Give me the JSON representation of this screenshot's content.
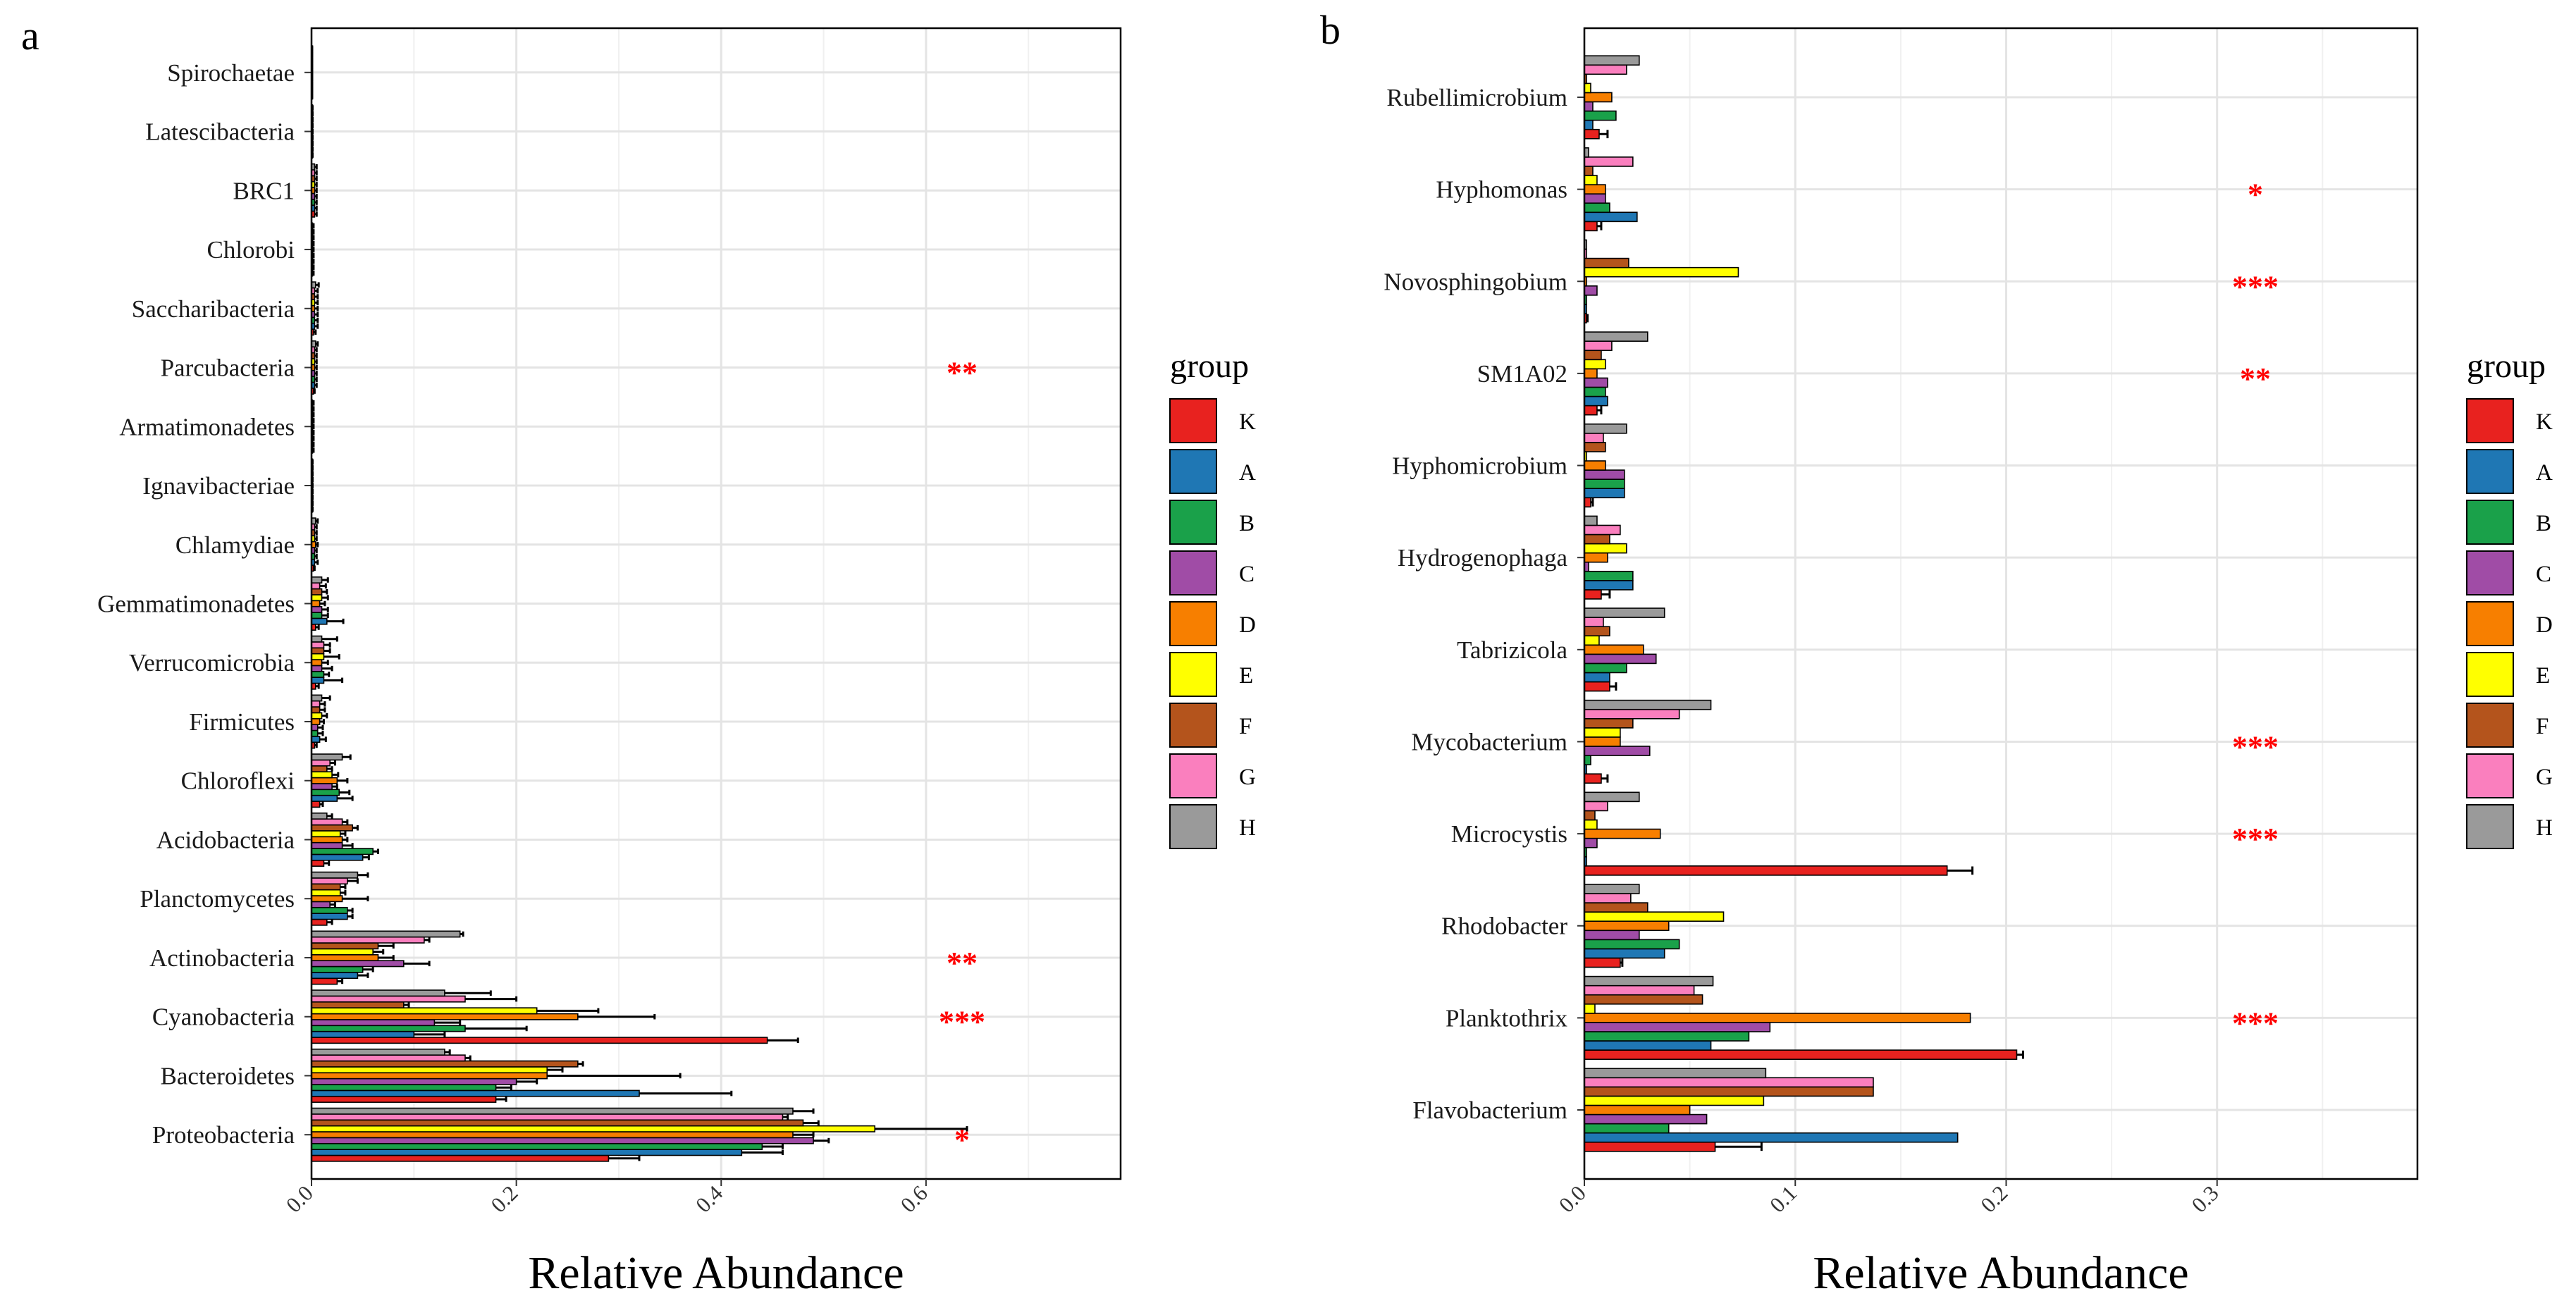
{
  "groups": [
    "K",
    "A",
    "B",
    "C",
    "D",
    "E",
    "F",
    "G",
    "H"
  ],
  "colors": [
    "#e8221f",
    "#1f77b4",
    "#1aa14a",
    "#a04ca6",
    "#f77f00",
    "#ffff00",
    "#b4541c",
    "#fa7fbe",
    "#9a9a9a"
  ],
  "legend_title": "group",
  "chart_data": [
    {
      "panel": "a",
      "type": "bar",
      "orientation": "horizontal",
      "xlabel": "Relative Abundance",
      "xlim": [
        0,
        0.79
      ],
      "xticks": [
        "0.0",
        "0.2",
        "0.4",
        "0.6"
      ],
      "grid": true,
      "legend_position": "right",
      "categories": [
        "Proteobacteria",
        "Bacteroidetes",
        "Cyanobacteria",
        "Actinobacteria",
        "Planctomycetes",
        "Acidobacteria",
        "Chloroflexi",
        "Firmicutes",
        "Verrucomicrobia",
        "Gemmatimonadetes",
        "Chlamydiae",
        "Ignavibacteriae",
        "Armatimonadetes",
        "Parcubacteria",
        "Saccharibacteria",
        "Chlorobi",
        "BRC1",
        "Latescibacteria",
        "Spirochaetae"
      ],
      "significance": [
        "*",
        "",
        "***",
        "**",
        "",
        "",
        "",
        "",
        "",
        "",
        "",
        "",
        "",
        "**",
        "",
        "",
        "",
        "",
        ""
      ],
      "series": [
        {
          "name": "K",
          "values": [
            0.29,
            0.18,
            0.445,
            0.025,
            0.015,
            0.012,
            0.008,
            0.003,
            0.004,
            0.004,
            0.002,
            0.0005,
            0.001,
            0.002,
            0.002,
            0.001,
            0.003,
            0.0005,
            0.0003
          ],
          "errors": [
            0.03,
            0.01,
            0.03,
            0.005,
            0.005,
            0.005,
            0.003,
            0.002,
            0.003,
            0.003,
            0.001,
            0.0005,
            0.001,
            0.001,
            0.002,
            0.001,
            0.002,
            0.0005,
            0.0003
          ]
        },
        {
          "name": "A",
          "values": [
            0.42,
            0.32,
            0.1,
            0.045,
            0.035,
            0.05,
            0.025,
            0.008,
            0.012,
            0.015,
            0.003,
            0.0005,
            0.001,
            0.003,
            0.003,
            0.001,
            0.003,
            0.0005,
            0.0003
          ],
          "errors": [
            0.04,
            0.09,
            0.03,
            0.01,
            0.005,
            0.006,
            0.015,
            0.006,
            0.018,
            0.016,
            0.003,
            0.0005,
            0.001,
            0.002,
            0.003,
            0.001,
            0.002,
            0.0005,
            0.0003
          ]
        },
        {
          "name": "B",
          "values": [
            0.44,
            0.18,
            0.15,
            0.05,
            0.035,
            0.06,
            0.027,
            0.006,
            0.012,
            0.01,
            0.003,
            0.0005,
            0.001,
            0.003,
            0.003,
            0.001,
            0.003,
            0.0005,
            0.0003
          ],
          "errors": [
            0.02,
            0.015,
            0.06,
            0.01,
            0.005,
            0.005,
            0.01,
            0.005,
            0.005,
            0.006,
            0.002,
            0.0005,
            0.001,
            0.002,
            0.003,
            0.001,
            0.002,
            0.0005,
            0.0003
          ]
        },
        {
          "name": "C",
          "values": [
            0.49,
            0.2,
            0.12,
            0.09,
            0.018,
            0.03,
            0.02,
            0.006,
            0.01,
            0.01,
            0.003,
            0.0005,
            0.001,
            0.003,
            0.003,
            0.001,
            0.003,
            0.0005,
            0.0003
          ],
          "errors": [
            0.015,
            0.02,
            0.025,
            0.025,
            0.005,
            0.01,
            0.005,
            0.005,
            0.01,
            0.006,
            0.002,
            0.0005,
            0.001,
            0.002,
            0.003,
            0.001,
            0.002,
            0.0005,
            0.0003
          ]
        },
        {
          "name": "D",
          "values": [
            0.47,
            0.23,
            0.26,
            0.065,
            0.03,
            0.03,
            0.025,
            0.008,
            0.01,
            0.008,
            0.004,
            0.0005,
            0.001,
            0.003,
            0.003,
            0.001,
            0.003,
            0.0005,
            0.0003
          ],
          "errors": [
            0.02,
            0.13,
            0.075,
            0.015,
            0.025,
            0.005,
            0.01,
            0.004,
            0.006,
            0.005,
            0.002,
            0.0005,
            0.001,
            0.002,
            0.003,
            0.001,
            0.002,
            0.0005,
            0.0003
          ]
        },
        {
          "name": "E",
          "values": [
            0.55,
            0.23,
            0.22,
            0.06,
            0.028,
            0.028,
            0.02,
            0.01,
            0.012,
            0.01,
            0.003,
            0.0005,
            0.001,
            0.003,
            0.003,
            0.001,
            0.003,
            0.0005,
            0.0003
          ],
          "errors": [
            0.09,
            0.015,
            0.06,
            0.01,
            0.005,
            0.005,
            0.006,
            0.005,
            0.015,
            0.006,
            0.002,
            0.0005,
            0.001,
            0.002,
            0.003,
            0.001,
            0.002,
            0.0005,
            0.0003
          ]
        },
        {
          "name": "F",
          "values": [
            0.48,
            0.26,
            0.09,
            0.065,
            0.028,
            0.04,
            0.015,
            0.008,
            0.012,
            0.01,
            0.003,
            0.0005,
            0.001,
            0.003,
            0.003,
            0.001,
            0.003,
            0.0005,
            0.0003
          ],
          "errors": [
            0.015,
            0.005,
            0.005,
            0.015,
            0.005,
            0.005,
            0.005,
            0.005,
            0.006,
            0.005,
            0.002,
            0.0005,
            0.001,
            0.002,
            0.003,
            0.001,
            0.002,
            0.0005,
            0.0003
          ]
        },
        {
          "name": "G",
          "values": [
            0.46,
            0.15,
            0.15,
            0.11,
            0.035,
            0.03,
            0.018,
            0.008,
            0.012,
            0.008,
            0.003,
            0.0005,
            0.001,
            0.003,
            0.003,
            0.001,
            0.003,
            0.0005,
            0.0003
          ],
          "errors": [
            0.005,
            0.005,
            0.05,
            0.005,
            0.01,
            0.005,
            0.005,
            0.005,
            0.006,
            0.006,
            0.002,
            0.0005,
            0.001,
            0.002,
            0.003,
            0.001,
            0.002,
            0.0005,
            0.0003
          ]
        },
        {
          "name": "H",
          "values": [
            0.47,
            0.13,
            0.13,
            0.145,
            0.045,
            0.015,
            0.03,
            0.01,
            0.01,
            0.01,
            0.004,
            0.0005,
            0.001,
            0.004,
            0.004,
            0.001,
            0.003,
            0.0005,
            0.0003
          ],
          "errors": [
            0.02,
            0.005,
            0.045,
            0.003,
            0.01,
            0.005,
            0.008,
            0.008,
            0.015,
            0.006,
            0.002,
            0.0005,
            0.001,
            0.002,
            0.003,
            0.001,
            0.002,
            0.0005,
            0.0003
          ]
        }
      ]
    },
    {
      "panel": "b",
      "type": "bar",
      "orientation": "horizontal",
      "xlabel": "Relative Abundance",
      "xlim": [
        0,
        0.395
      ],
      "xticks": [
        "0.0",
        "0.1",
        "0.2",
        "0.3"
      ],
      "grid": true,
      "legend_position": "right",
      "categories": [
        "Flavobacterium",
        "Planktothrix",
        "Rhodobacter",
        "Microcystis",
        "Mycobacterium",
        "Tabrizicola",
        "Hydrogenophaga",
        "Hyphomicrobium",
        "SM1A02",
        "Novosphingobium",
        "Hyphomonas",
        "Rubellimicrobium"
      ],
      "significance": [
        "",
        "***",
        "",
        "***",
        "***",
        "",
        "",
        "",
        "**",
        "***",
        "*",
        ""
      ],
      "series": [
        {
          "name": "K",
          "values": [
            0.062,
            0.205,
            0.017,
            0.172,
            0.008,
            0.012,
            0.008,
            0.003,
            0.006,
            0.001,
            0.006,
            0.007
          ],
          "errors": [
            0.022,
            0.003,
            0.001,
            0.012,
            0.003,
            0.003,
            0.004,
            0.001,
            0.002,
            0.0005,
            0.002,
            0.004
          ]
        },
        {
          "name": "A",
          "values": [
            0.177,
            0.06,
            0.038,
            0.001,
            0.001,
            0.012,
            0.023,
            0.019,
            0.011,
            0.001,
            0.025,
            0.004
          ]
        },
        {
          "name": "B",
          "values": [
            0.04,
            0.078,
            0.045,
            0.001,
            0.003,
            0.02,
            0.023,
            0.019,
            0.01,
            0.001,
            0.012,
            0.015
          ]
        },
        {
          "name": "C",
          "values": [
            0.058,
            0.088,
            0.026,
            0.006,
            0.031,
            0.034,
            0.002,
            0.019,
            0.011,
            0.006,
            0.01,
            0.004
          ]
        },
        {
          "name": "D",
          "values": [
            0.05,
            0.183,
            0.04,
            0.036,
            0.017,
            0.028,
            0.011,
            0.01,
            0.006,
            0.001,
            0.01,
            0.013
          ]
        },
        {
          "name": "E",
          "values": [
            0.085,
            0.005,
            0.066,
            0.006,
            0.017,
            0.007,
            0.02,
            0.001,
            0.01,
            0.073,
            0.006,
            0.003
          ]
        },
        {
          "name": "F",
          "values": [
            0.137,
            0.056,
            0.03,
            0.005,
            0.023,
            0.012,
            0.012,
            0.01,
            0.008,
            0.021,
            0.004,
            0.001
          ]
        },
        {
          "name": "G",
          "values": [
            0.137,
            0.052,
            0.022,
            0.011,
            0.045,
            0.009,
            0.017,
            0.009,
            0.013,
            0.001,
            0.023,
            0.02
          ]
        },
        {
          "name": "H",
          "values": [
            0.086,
            0.061,
            0.026,
            0.026,
            0.06,
            0.038,
            0.006,
            0.02,
            0.03,
            0.001,
            0.002,
            0.026
          ]
        }
      ]
    }
  ]
}
